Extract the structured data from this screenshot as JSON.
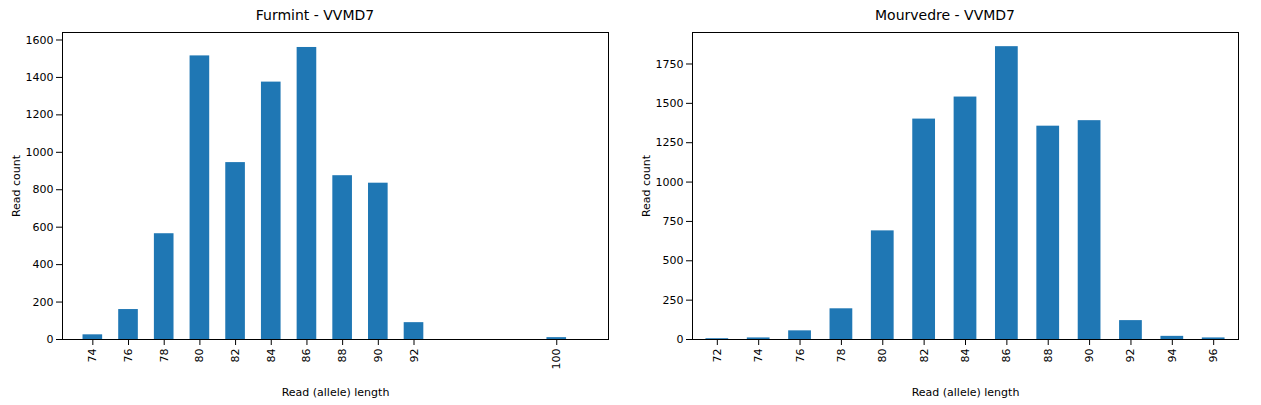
{
  "chart_data": [
    {
      "type": "bar",
      "title": "Furmint - VVMD7",
      "x_label": "Read (allele) length",
      "y_label": "Read count",
      "x": [
        74,
        76,
        78,
        80,
        82,
        84,
        86,
        88,
        90,
        92,
        100
      ],
      "values": [
        25,
        160,
        565,
        1515,
        945,
        1375,
        1560,
        875,
        835,
        90,
        10
      ],
      "color": "#1f77b4",
      "xlim": [
        72.3,
        102.9
      ],
      "xticks": [
        74,
        76,
        78,
        80,
        82,
        84,
        86,
        88,
        90,
        92,
        100
      ],
      "ylim": [
        0,
        1640
      ],
      "yticks": [
        0,
        200,
        400,
        600,
        800,
        1000,
        1200,
        1400,
        1600
      ],
      "grid": false
    },
    {
      "type": "bar",
      "title": "Mourvedre - VVMD7",
      "x_label": "Read (allele) length",
      "y_label": "Read count",
      "x": [
        72,
        74,
        76,
        78,
        80,
        82,
        84,
        86,
        88,
        90,
        92,
        94,
        96
      ],
      "values": [
        5,
        10,
        55,
        195,
        690,
        1400,
        1540,
        1860,
        1355,
        1390,
        120,
        20,
        10
      ],
      "color": "#1f77b4",
      "xlim": [
        70.8,
        97.2
      ],
      "xticks": [
        72,
        74,
        76,
        78,
        80,
        82,
        84,
        86,
        88,
        90,
        92,
        94,
        96
      ],
      "ylim": [
        0,
        1950
      ],
      "yticks": [
        0,
        250,
        500,
        750,
        1000,
        1250,
        1500,
        1750
      ],
      "grid": false
    }
  ]
}
